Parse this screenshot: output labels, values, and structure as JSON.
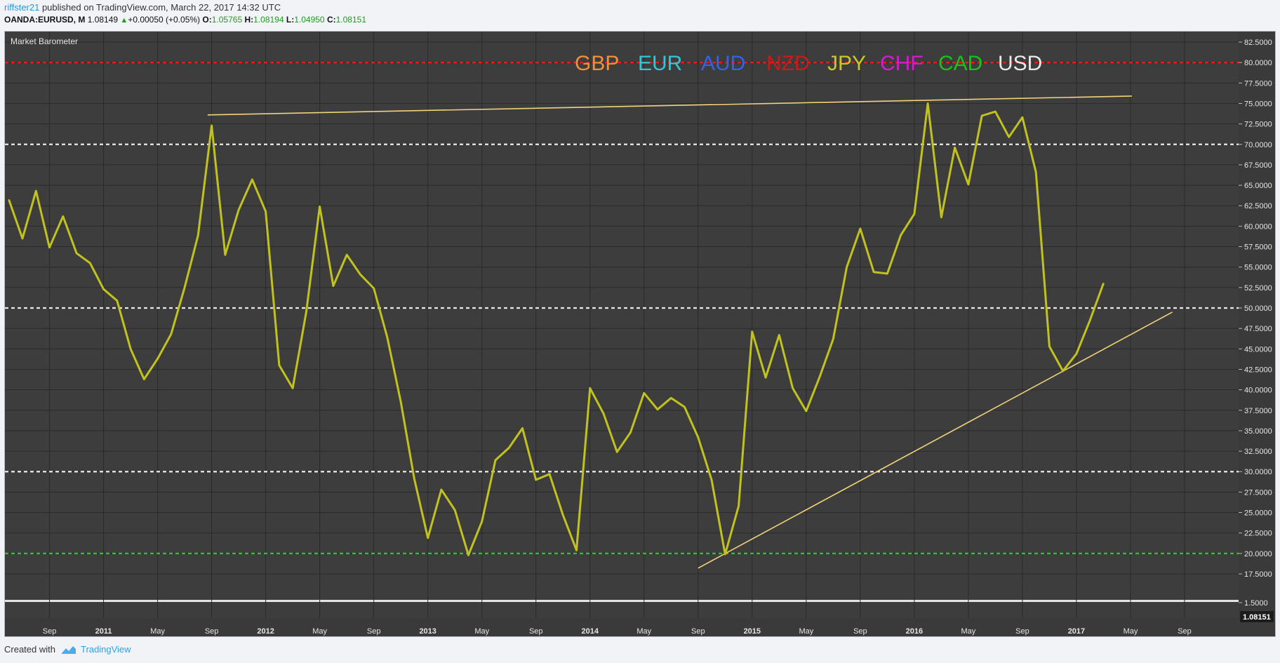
{
  "header": {
    "user": "riffster21",
    "published": " published on TradingView.com, March 22, 2017 14:32 UTC",
    "symbol": "OANDA:EURUSD, M",
    "price": "1.08149",
    "change": "+0.00050 (+0.05%)",
    "o_label": "O:",
    "o_value": "1.05765",
    "h_label": "H:",
    "h_value": "1.08194",
    "l_label": "L:",
    "l_value": "1.04950",
    "c_label": "C:",
    "c_value": "1.08151"
  },
  "footer": {
    "created_with": "Created with",
    "brand": "TradingView"
  },
  "colors": {
    "plot_bg": "#3d3d3d",
    "grid": "#2a2a2a",
    "line": "#c2c21e",
    "trend": "#f2d27a",
    "red_level": "#e01e1e",
    "white_level": "#e8e8e8",
    "green_level": "#19d319"
  },
  "chart_data": {
    "type": "line",
    "title": "Market Barometer",
    "currency_labels": [
      {
        "text": "GBP",
        "color": "#f0913a"
      },
      {
        "text": "EUR",
        "color": "#2ec8d6"
      },
      {
        "text": "AUD",
        "color": "#2f63f0"
      },
      {
        "text": "NZD",
        "color": "#d01818"
      },
      {
        "text": "JPY",
        "color": "#c8c81e"
      },
      {
        "text": "CHF",
        "color": "#d01ed0"
      },
      {
        "text": "CAD",
        "color": "#19c219"
      },
      {
        "text": "USD",
        "color": "#e8e8e8"
      }
    ],
    "x_ticks": [
      "Sep",
      "2011",
      "May",
      "Sep",
      "2012",
      "May",
      "Sep",
      "2013",
      "May",
      "Sep",
      "2014",
      "May",
      "Sep",
      "2015",
      "May",
      "Sep",
      "2016",
      "May",
      "Sep",
      "2017",
      "May",
      "Sep"
    ],
    "x_tick_month_index": [
      8,
      12,
      16,
      20,
      24,
      28,
      32,
      36,
      40,
      44,
      48,
      52,
      56,
      60,
      64,
      68,
      72,
      76,
      80,
      84,
      88,
      92
    ],
    "x_range_month_index": [
      4.7,
      96
    ],
    "month_index_note": "months since Jan 2010",
    "ylim": [
      17.5,
      82.5
    ],
    "y_ticks": [
      "82.5000",
      "80.0000",
      "77.5000",
      "75.0000",
      "72.5000",
      "70.0000",
      "67.5000",
      "65.0000",
      "62.5000",
      "60.0000",
      "57.5000",
      "55.0000",
      "52.5000",
      "50.0000",
      "47.5000",
      "45.0000",
      "42.5000",
      "40.0000",
      "37.5000",
      "35.0000",
      "32.5000",
      "30.0000",
      "27.5000",
      "25.0000",
      "22.5000",
      "20.0000",
      "17.5000"
    ],
    "lower_pane": {
      "labels": [
        "1.5000",
        "1.08151"
      ],
      "last_value": "1.08151"
    },
    "series": [
      {
        "start_month_index": 5,
        "values": [
          63.2,
          58.5,
          64.3,
          57.4,
          61.2,
          56.7,
          55.5,
          52.3,
          50.9,
          45.0,
          41.3,
          43.8,
          46.8,
          52.5,
          58.9,
          72.3,
          56.5,
          62.0,
          65.7,
          61.8,
          43.0,
          40.2,
          49.5,
          62.4,
          52.7,
          56.5,
          54.1,
          52.4,
          46.4,
          38.5,
          29.1,
          21.9,
          27.8,
          25.3,
          19.8,
          23.9,
          31.4,
          32.9,
          35.3,
          29.0,
          29.7,
          24.7,
          20.4,
          40.2,
          37.1,
          32.4,
          34.8,
          39.6,
          37.6,
          39.0,
          37.9,
          34.2,
          29.0,
          19.9,
          25.8,
          47.1,
          41.5,
          46.7,
          40.2,
          37.4,
          41.6,
          46.2,
          55.0,
          59.7,
          54.4,
          54.2,
          58.9,
          61.5,
          75.0,
          61.1,
          69.6,
          65.1,
          73.5,
          74.0,
          70.9,
          73.3,
          66.6,
          45.3,
          42.3,
          44.4,
          48.5,
          53.0
        ]
      }
    ],
    "horizontal_levels": [
      {
        "value": 80,
        "color": "red"
      },
      {
        "value": 70,
        "color": "white"
      },
      {
        "value": 50,
        "color": "white"
      },
      {
        "value": 30,
        "color": "white"
      },
      {
        "value": 20,
        "color": "green"
      }
    ],
    "trendlines": [
      {
        "from": [
          19.7,
          73.6
        ],
        "to": [
          88.1,
          75.9
        ]
      },
      {
        "from": [
          56.0,
          18.2
        ],
        "to": [
          91.1,
          49.5
        ]
      }
    ]
  }
}
